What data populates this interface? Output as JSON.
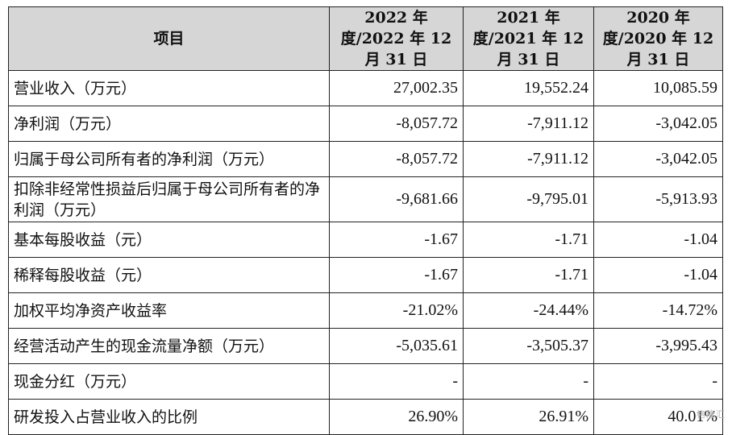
{
  "table": {
    "headers": [
      "项目",
      "2022 年度/2022 年 12 月 31 日",
      "2021 年度/2021 年 12 月 31 日",
      "2020 年度/2020 年 12 月 31 日"
    ],
    "rows": [
      {
        "label": "营业收入（万元）",
        "values": [
          "27,002.35",
          "19,552.24",
          "10,085.59"
        ]
      },
      {
        "label": "净利润（万元）",
        "values": [
          "-8,057.72",
          "-7,911.12",
          "-3,042.05"
        ]
      },
      {
        "label": "归属于母公司所有者的净利润（万元）",
        "values": [
          "-8,057.72",
          "-7,911.12",
          "-3,042.05"
        ]
      },
      {
        "label": "扣除非经常性损益后归属于母公司所有者的净利润（万元）",
        "values": [
          "-9,681.66",
          "-9,795.01",
          "-5,913.93"
        ]
      },
      {
        "label": "基本每股收益（元）",
        "values": [
          "-1.67",
          "-1.71",
          "-1.04"
        ]
      },
      {
        "label": "稀释每股收益（元）",
        "values": [
          "-1.67",
          "-1.71",
          "-1.04"
        ]
      },
      {
        "label": "加权平均净资产收益率",
        "values": [
          "-21.02%",
          "-24.44%",
          "-14.72%"
        ]
      },
      {
        "label": "经营活动产生的现金流量净额（万元）",
        "values": [
          "-5,035.61",
          "-3,505.37",
          "-3,995.43"
        ]
      },
      {
        "label": "现金分红（万元）",
        "values": [
          "-",
          "-",
          "-"
        ]
      },
      {
        "label": "研发投入占营业收入的比例",
        "values": [
          "26.90%",
          "26.91%",
          "40.01%"
        ]
      }
    ]
  },
  "watermark": "格隆汇"
}
